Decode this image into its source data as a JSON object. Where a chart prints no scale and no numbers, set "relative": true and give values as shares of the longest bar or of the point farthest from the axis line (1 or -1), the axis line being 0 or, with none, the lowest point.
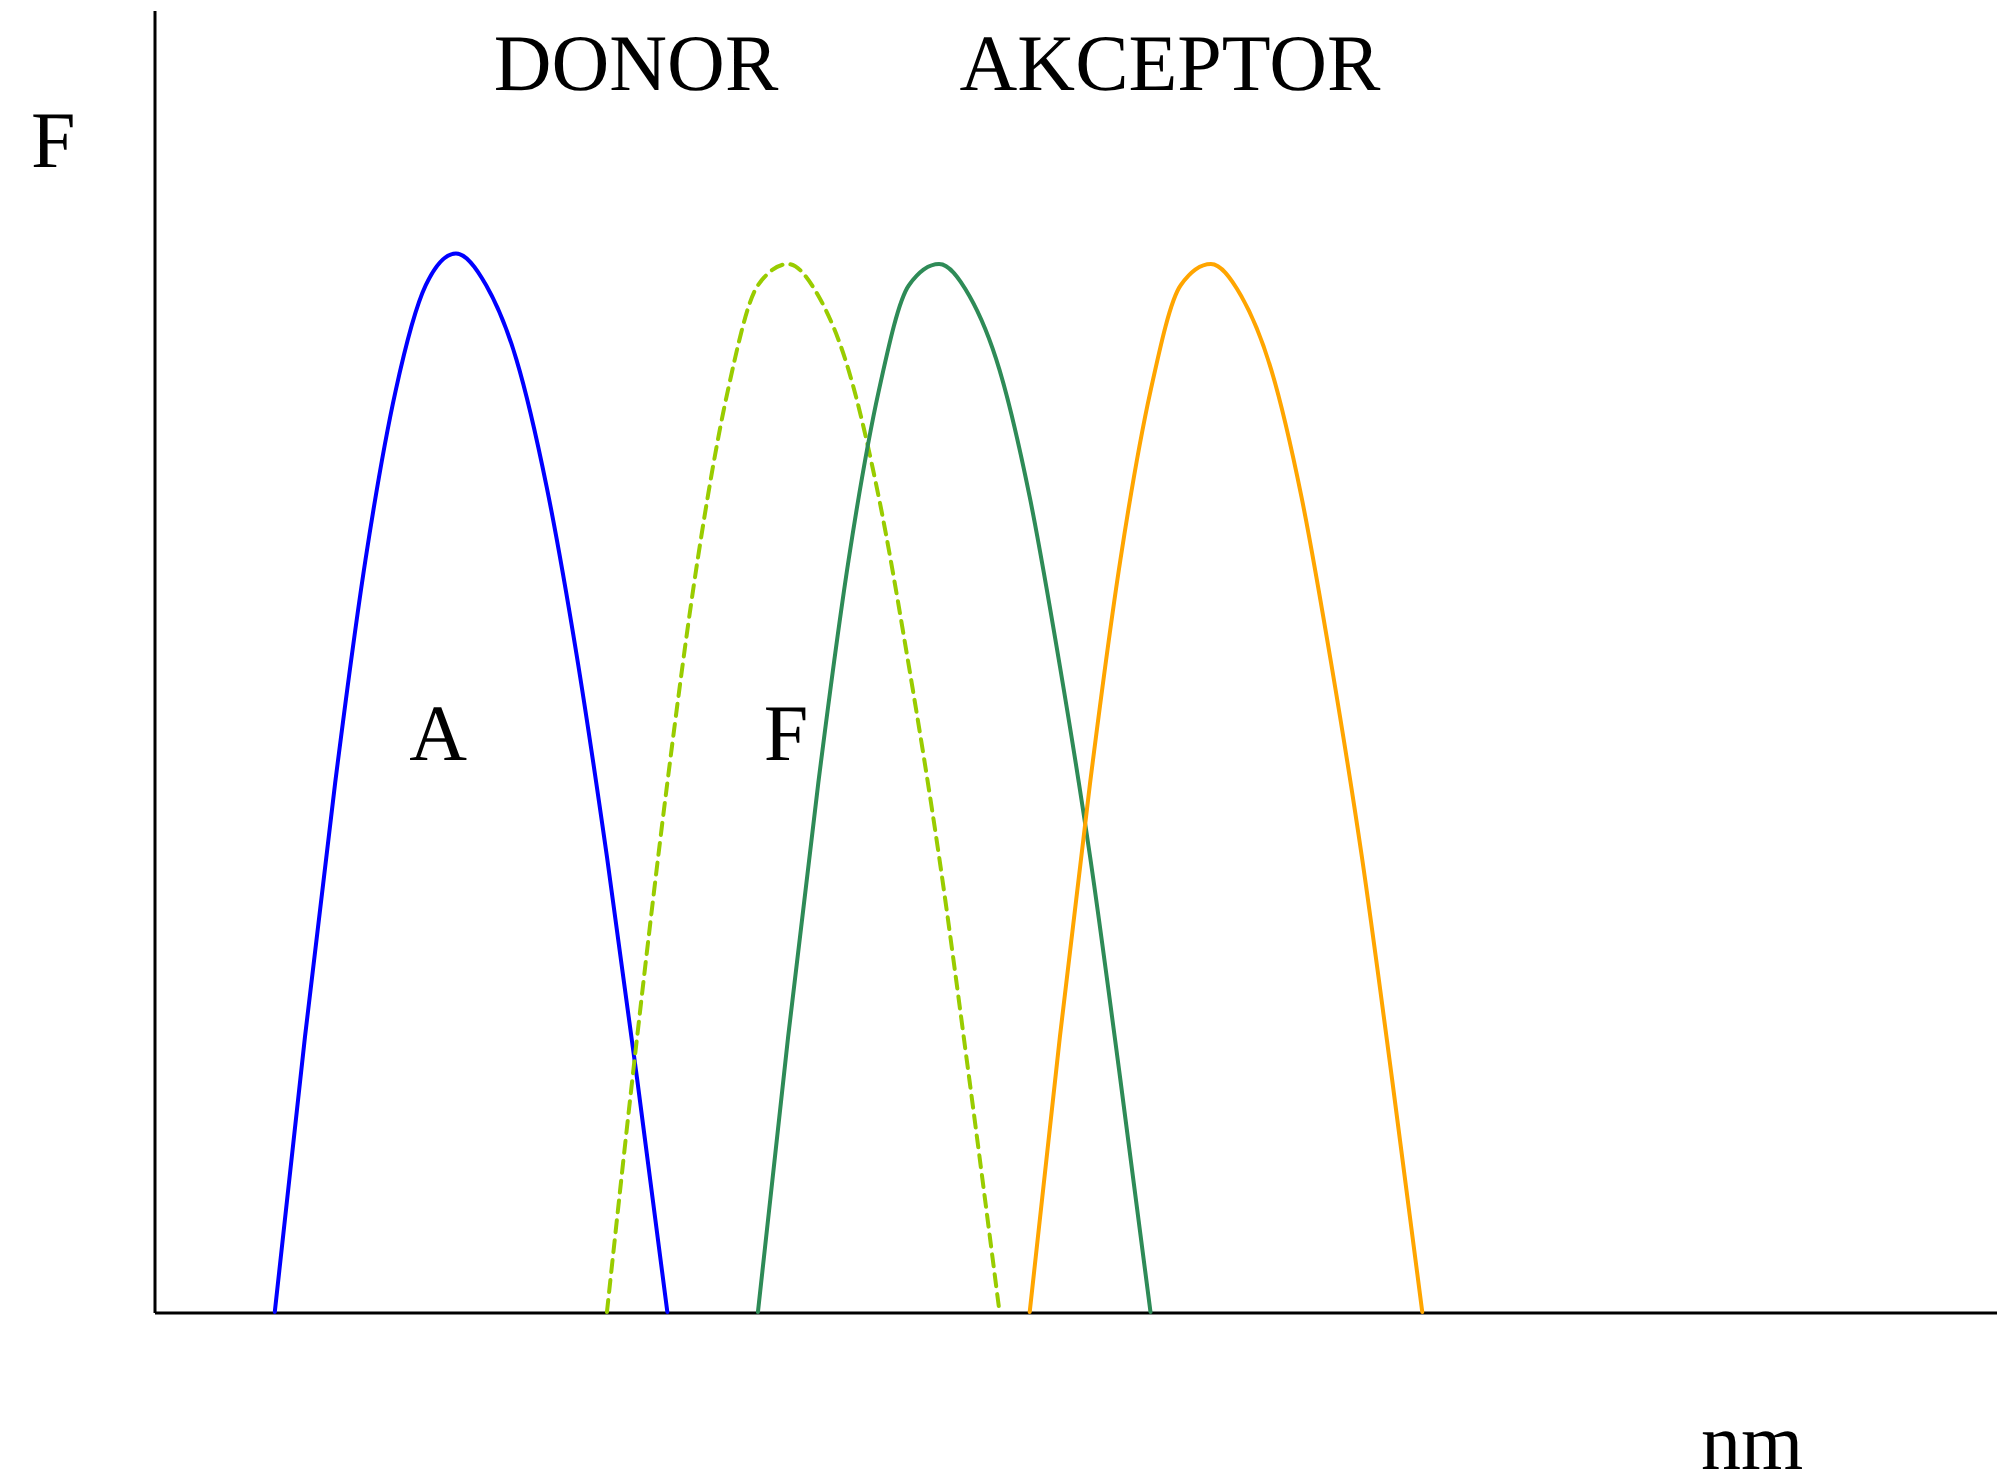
{
  "chart_data": {
    "type": "line",
    "relative": true,
    "xlabel": "nm",
    "ylabel": "F",
    "annotations": [
      "DONOR",
      "AKCEPTOR",
      "A",
      "F"
    ],
    "categories": [
      null,
      null,
      null,
      null,
      null,
      null,
      null,
      null,
      null,
      null,
      null,
      null,
      null,
      null,
      null,
      null,
      null,
      null,
      null,
      null,
      null,
      null,
      null,
      null,
      null,
      null,
      null,
      null,
      null,
      null,
      null,
      null,
      null,
      null,
      null,
      null,
      null,
      null,
      null,
      null,
      null,
      null,
      null,
      null,
      null,
      null,
      null,
      null,
      null,
      null,
      null,
      null,
      null,
      null,
      null,
      null,
      null,
      null,
      null,
      null,
      null,
      null
    ],
    "series": [
      {
        "color": "#0000ff",
        "line_style": "solid",
        "values": [
          null,
          null,
          null,
          null,
          0,
          0.26,
          0.5,
          0.71,
          0.87,
          0.97,
          1,
          0.97,
          0.9,
          0.78,
          0.62,
          0.43,
          0.22,
          0,
          null,
          null,
          null,
          null,
          null,
          null,
          null,
          null,
          null,
          null,
          null,
          null,
          null,
          null,
          null,
          null,
          null,
          null,
          null,
          null,
          null,
          null,
          null,
          null,
          null,
          null,
          null,
          null,
          null,
          null,
          null,
          null,
          null,
          null,
          null,
          null,
          null,
          null,
          null,
          null,
          null,
          null,
          null,
          null
        ]
      },
      {
        "color": "#99cc00",
        "line_style": "dashed",
        "values": [
          null,
          null,
          null,
          null,
          null,
          null,
          null,
          null,
          null,
          null,
          null,
          null,
          null,
          null,
          null,
          0,
          0.26,
          0.5,
          0.71,
          0.87,
          0.97,
          0.99,
          0.96,
          0.89,
          0.77,
          0.61,
          0.43,
          0.22,
          0,
          null,
          null,
          null,
          null,
          null,
          null,
          null,
          null,
          null,
          null,
          null,
          null,
          null,
          null,
          null,
          null,
          null,
          null,
          null,
          null,
          null,
          null,
          null,
          null,
          null,
          null,
          null,
          null,
          null,
          null,
          null,
          null,
          null
        ]
      },
      {
        "color": "#2e8b57",
        "line_style": "solid",
        "values": [
          null,
          null,
          null,
          null,
          null,
          null,
          null,
          null,
          null,
          null,
          null,
          null,
          null,
          null,
          null,
          null,
          null,
          null,
          null,
          null,
          0,
          0.26,
          0.5,
          0.71,
          0.87,
          0.97,
          0.99,
          0.96,
          0.89,
          0.77,
          0.61,
          0.43,
          0.22,
          0,
          null,
          null,
          null,
          null,
          null,
          null,
          null,
          null,
          null,
          null,
          null,
          null,
          null,
          null,
          null,
          null,
          null,
          null,
          null,
          null,
          null,
          null,
          null,
          null,
          null,
          null,
          null,
          null
        ]
      },
      {
        "color": "#ffa500",
        "line_style": "solid",
        "values": [
          null,
          null,
          null,
          null,
          null,
          null,
          null,
          null,
          null,
          null,
          null,
          null,
          null,
          null,
          null,
          null,
          null,
          null,
          null,
          null,
          null,
          null,
          null,
          null,
          null,
          null,
          null,
          null,
          null,
          0,
          0.26,
          0.5,
          0.71,
          0.87,
          0.97,
          0.99,
          0.96,
          0.89,
          0.77,
          0.61,
          0.43,
          0.22,
          0,
          null,
          null,
          null,
          null,
          null,
          null,
          null,
          null,
          null,
          null,
          null,
          null,
          null,
          null,
          null,
          null,
          null,
          null,
          null
        ]
      }
    ]
  }
}
